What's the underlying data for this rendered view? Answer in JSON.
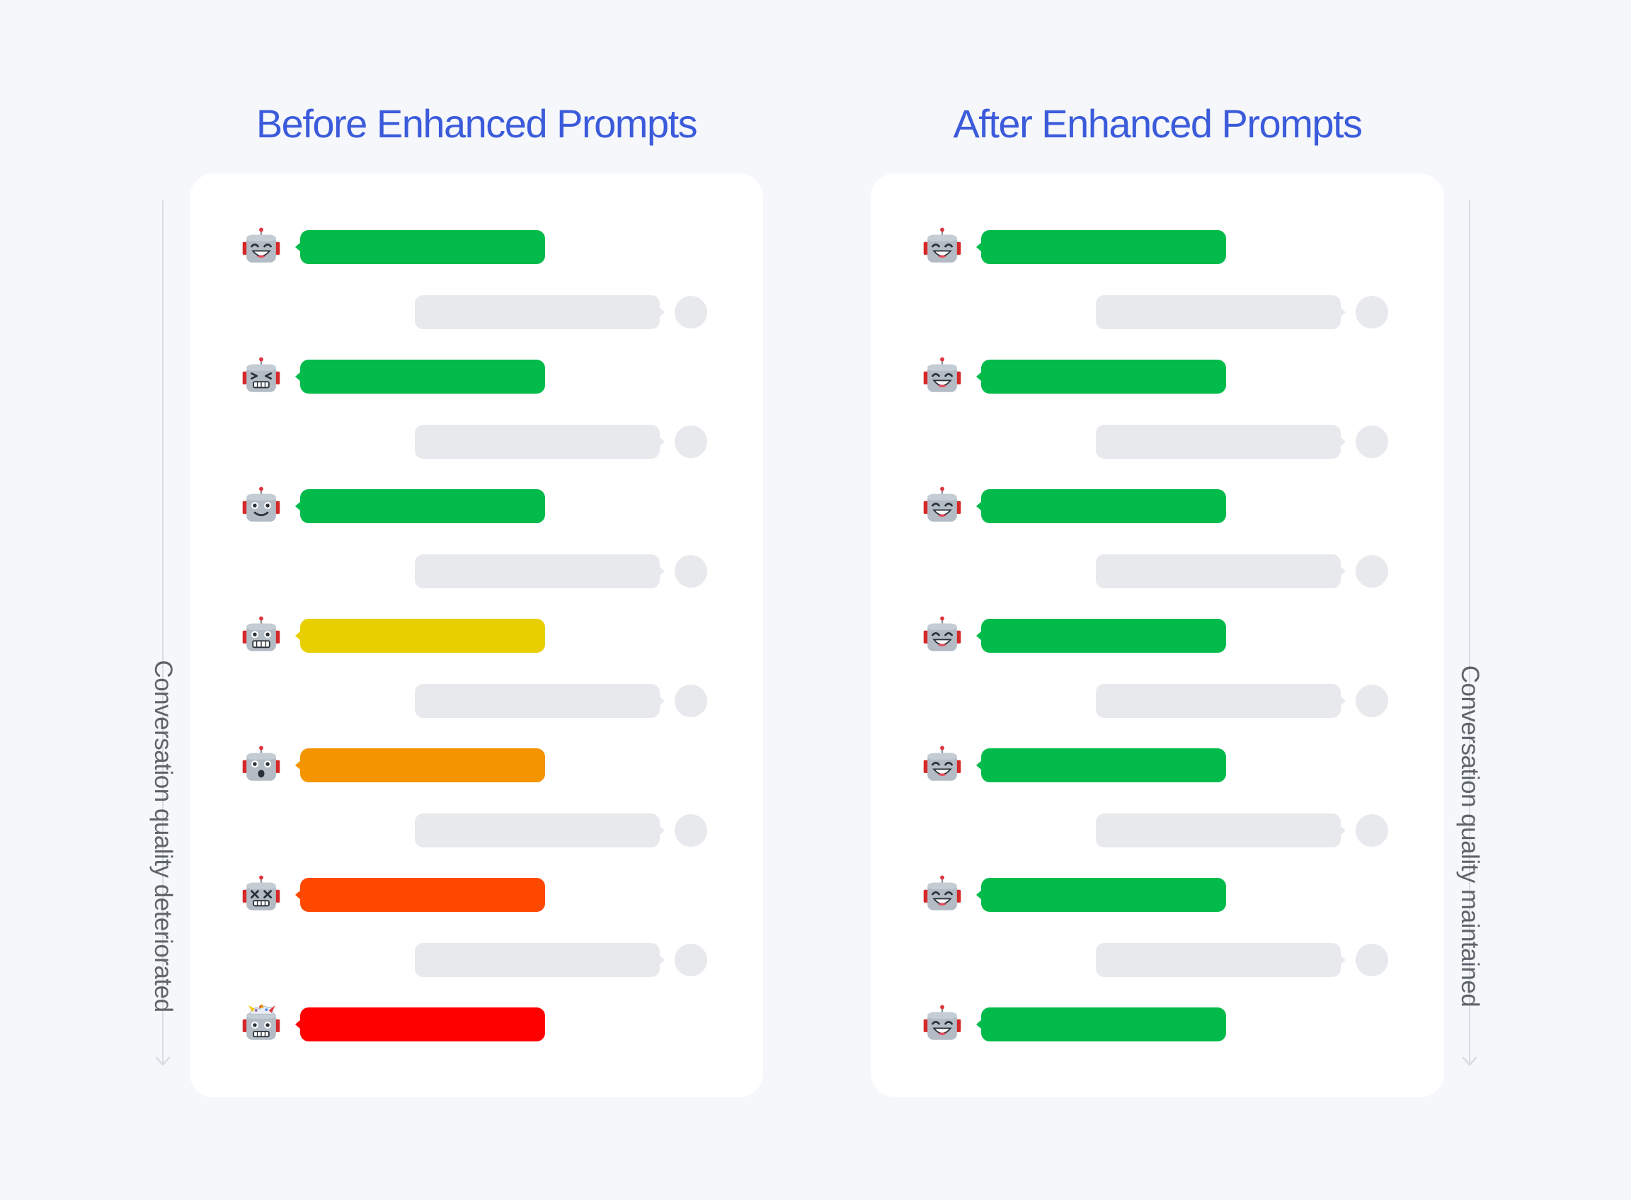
{
  "colors": {
    "title": "#3b5bdb",
    "user_bubble": "#e8e9ec",
    "green": "#02bb4a",
    "yellow": "#e8d000",
    "orange": "#f39400",
    "red_orange": "#ff4800",
    "red": "#ff0000"
  },
  "left_panel": {
    "title": "Before Enhanced Prompts",
    "side_label": "Conversation quality deteriorated",
    "bot_messages": [
      {
        "color": "#02bb4a",
        "face": "robot-happy-icon"
      },
      {
        "color": "#02bb4a",
        "face": "robot-squint-icon"
      },
      {
        "color": "#02bb4a",
        "face": "robot-neutral-icon"
      },
      {
        "color": "#e8d000",
        "face": "robot-grimace-icon"
      },
      {
        "color": "#f39400",
        "face": "robot-worried-icon"
      },
      {
        "color": "#ff4800",
        "face": "robot-dizzy-icon"
      },
      {
        "color": "#ff0000",
        "face": "robot-exploding-icon"
      }
    ]
  },
  "right_panel": {
    "title": "After Enhanced Prompts",
    "side_label": "Conversation quality maintained",
    "bot_messages": [
      {
        "color": "#02bb4a",
        "face": "robot-happy-icon"
      },
      {
        "color": "#02bb4a",
        "face": "robot-happy-icon"
      },
      {
        "color": "#02bb4a",
        "face": "robot-happy-icon"
      },
      {
        "color": "#02bb4a",
        "face": "robot-happy-icon"
      },
      {
        "color": "#02bb4a",
        "face": "robot-happy-icon"
      },
      {
        "color": "#02bb4a",
        "face": "robot-happy-icon"
      },
      {
        "color": "#02bb4a",
        "face": "robot-happy-icon"
      }
    ]
  }
}
